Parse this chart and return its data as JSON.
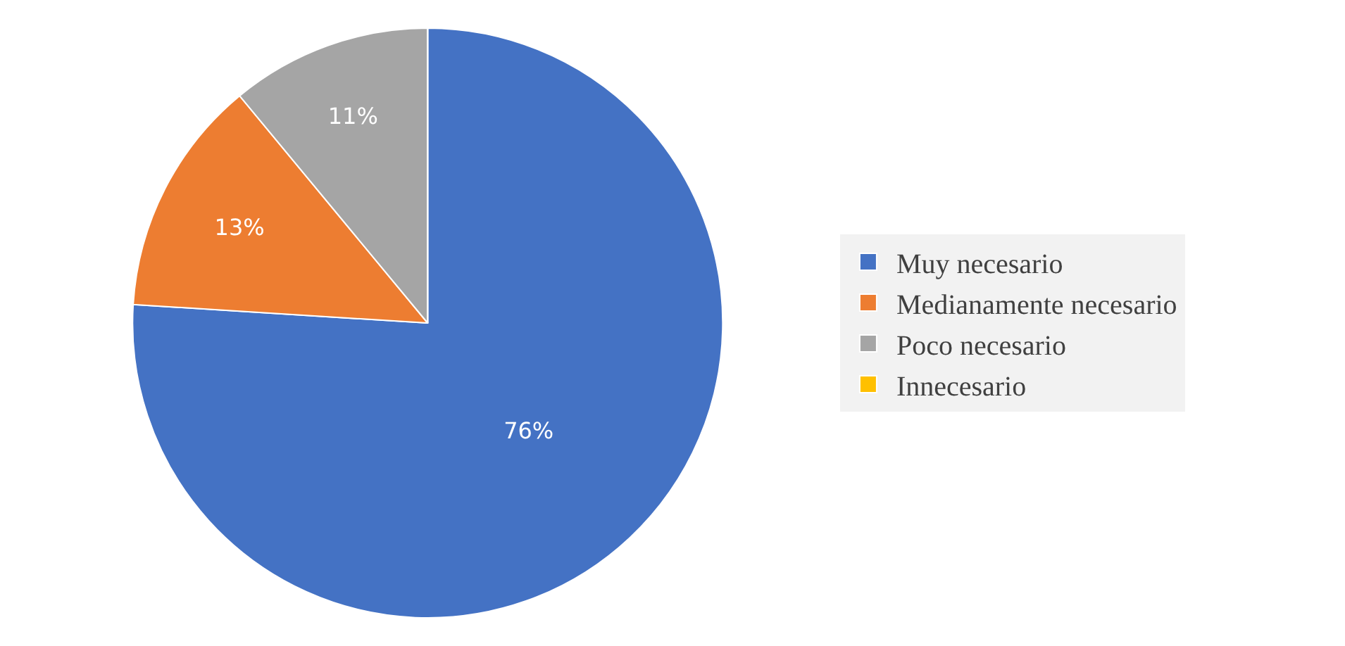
{
  "chart_data": {
    "type": "pie",
    "categories": [
      "Muy necesario",
      "Medianamente necesario",
      "Poco necesario",
      "Innecesario"
    ],
    "values": [
      76,
      13,
      11,
      0
    ],
    "colors": [
      "#4472c4",
      "#ed7d31",
      "#a5a5a5",
      "#ffc000"
    ],
    "value_labels": [
      "76%",
      "13%",
      "11%",
      null
    ],
    "legend": "right"
  }
}
